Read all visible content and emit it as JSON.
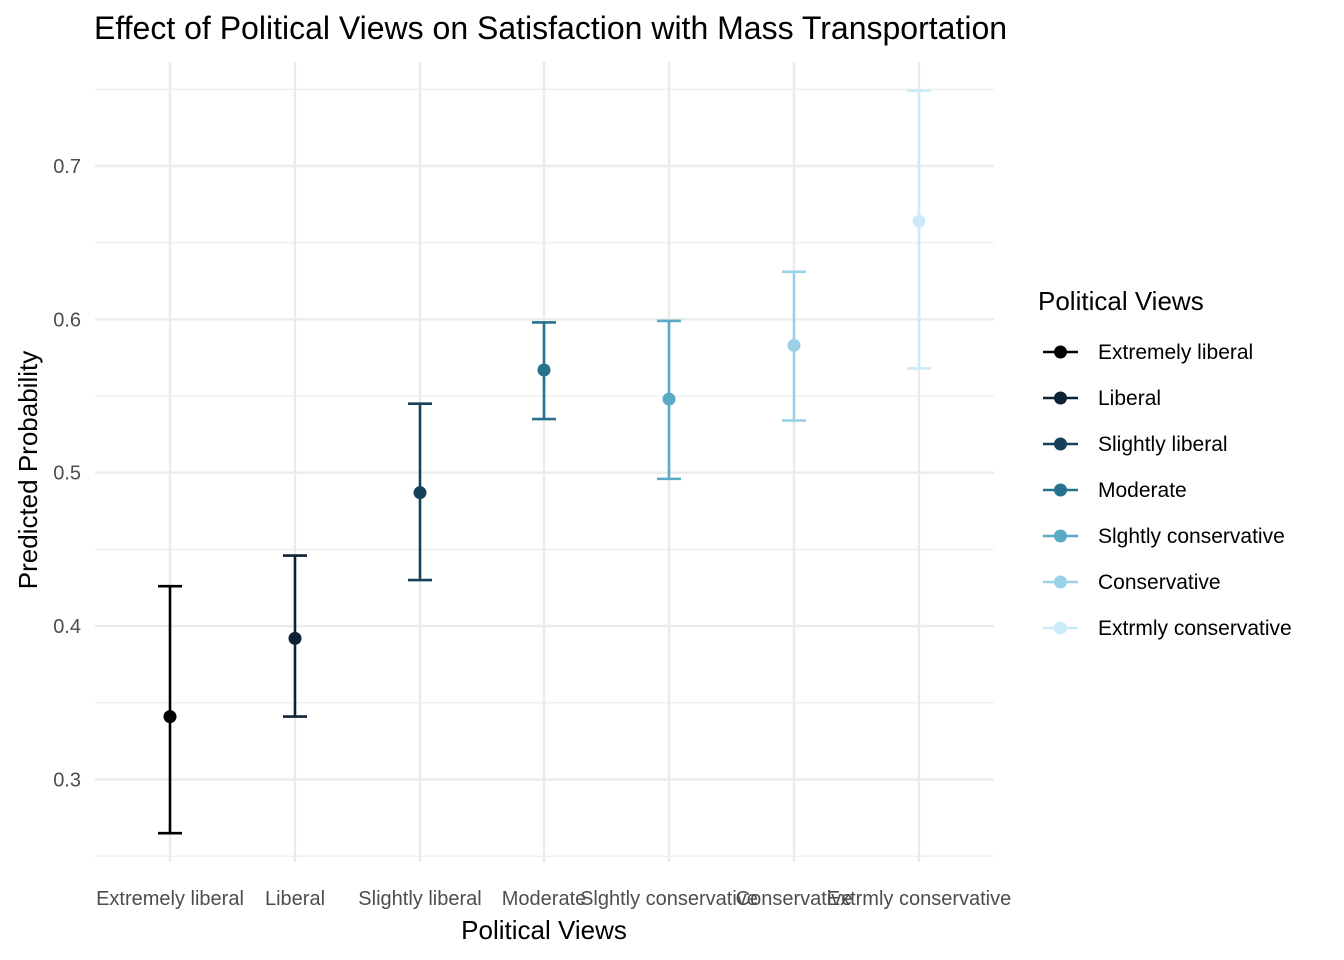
{
  "chart_data": {
    "type": "scatter",
    "title": "Effect of Political Views on Satisfaction with Mass Transportation",
    "xlabel": "Political Views",
    "ylabel": "Predicted Probability",
    "categories": [
      "Extremely liberal",
      "Liberal",
      "Slightly liberal",
      "Moderate",
      "Slghtly conservative",
      "Conservative",
      "Extrmly conservative"
    ],
    "values": [
      0.341,
      0.392,
      0.487,
      0.567,
      0.548,
      0.583,
      0.664
    ],
    "lower": [
      0.265,
      0.341,
      0.43,
      0.535,
      0.496,
      0.534,
      0.568
    ],
    "upper": [
      0.426,
      0.446,
      0.545,
      0.598,
      0.599,
      0.631,
      0.749
    ],
    "colors": [
      "#000000",
      "#0e2235",
      "#16415a",
      "#27738e",
      "#5aa9c5",
      "#9bd1e8",
      "#cdeaf8"
    ],
    "yticks": [
      0.3,
      0.4,
      0.5,
      0.6,
      0.7
    ],
    "ytick_labels": [
      "0.3",
      "0.4",
      "0.5",
      "0.6",
      "0.7"
    ],
    "ylim": [
      0.2462,
      0.7678
    ],
    "grid": true,
    "legend": {
      "title": "Political Views",
      "position": "right",
      "items": [
        "Extremely liberal",
        "Liberal",
        "Slightly liberal",
        "Moderate",
        "Slghtly conservative",
        "Conservative",
        "Extrmly conservative"
      ]
    }
  }
}
